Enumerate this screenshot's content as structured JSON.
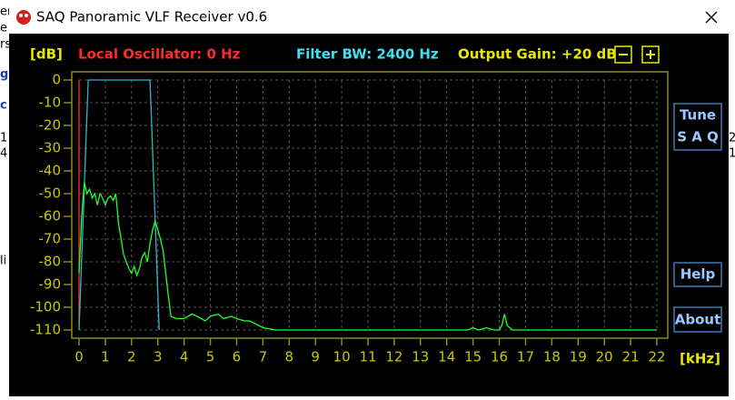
{
  "window": {
    "title": "SAQ Panoramic VLF Receiver v0.6"
  },
  "background": {
    "left": [
      "er",
      "e",
      "rs",
      "ge",
      "c",
      "1",
      "4",
      "li"
    ],
    "right": [
      "2",
      "1"
    ]
  },
  "header": {
    "db_label": "[dB]",
    "local_oscillator": "Local Oscillator: 0 Hz",
    "filter_bw": "Filter BW: 2400 Hz",
    "output_gain": "Output Gain: +20 dB"
  },
  "buttons": {
    "tune": "Tune",
    "saq": "S A Q",
    "help": "Help",
    "about": "About"
  },
  "chart_data": {
    "type": "line",
    "x_label": "[kHz]",
    "xlim": [
      0,
      22
    ],
    "xticks": [
      0,
      1,
      2,
      3,
      4,
      5,
      6,
      7,
      8,
      9,
      10,
      11,
      12,
      13,
      14,
      15,
      16,
      17,
      18,
      19,
      20,
      21,
      22
    ],
    "ylim": [
      -110,
      0
    ],
    "yticks": [
      0,
      -10,
      -20,
      -30,
      -40,
      -50,
      -60,
      -70,
      -80,
      -90,
      -100,
      -110
    ],
    "grid": true,
    "series": [
      {
        "name": "Local Oscillator",
        "color": "#ff2a2a",
        "x": [
          0,
          0
        ],
        "values": [
          -110,
          0
        ]
      },
      {
        "name": "Filter",
        "color": "#2fb8c8",
        "x": [
          0,
          0.35,
          2.7,
          3.05
        ],
        "values": [
          -110,
          0,
          0,
          -110
        ]
      },
      {
        "name": "Spectrum",
        "color": "#22ff22",
        "x": [
          0,
          0.1,
          0.2,
          0.3,
          0.4,
          0.5,
          0.6,
          0.7,
          0.8,
          0.9,
          1.0,
          1.1,
          1.2,
          1.3,
          1.4,
          1.5,
          1.6,
          1.7,
          1.8,
          1.9,
          2.0,
          2.1,
          2.2,
          2.3,
          2.4,
          2.5,
          2.6,
          2.7,
          2.8,
          2.9,
          3.0,
          3.1,
          3.2,
          3.3,
          3.4,
          3.5,
          3.7,
          4.0,
          4.3,
          4.5,
          4.8,
          5.0,
          5.3,
          5.5,
          5.8,
          6.0,
          6.3,
          6.5,
          7.0,
          7.5,
          10,
          14.8,
          15.0,
          15.2,
          15.5,
          15.8,
          16.0,
          16.1,
          16.2,
          16.3,
          16.5,
          17,
          22
        ],
        "values": [
          -85,
          -60,
          -45,
          -50,
          -48,
          -52,
          -50,
          -55,
          -50,
          -52,
          -55,
          -52,
          -51,
          -53,
          -50,
          -63,
          -70,
          -77,
          -80,
          -83,
          -85,
          -82,
          -86,
          -83,
          -78,
          -76,
          -80,
          -72,
          -66,
          -62,
          -66,
          -70,
          -75,
          -85,
          -95,
          -104,
          -105,
          -105,
          -103,
          -104,
          -106,
          -104,
          -103,
          -105,
          -104,
          -105,
          -106,
          -106,
          -109,
          -110,
          -110,
          -110,
          -109,
          -110,
          -109,
          -110,
          -110,
          -108,
          -103,
          -108,
          -110,
          -110,
          -110
        ]
      }
    ]
  }
}
